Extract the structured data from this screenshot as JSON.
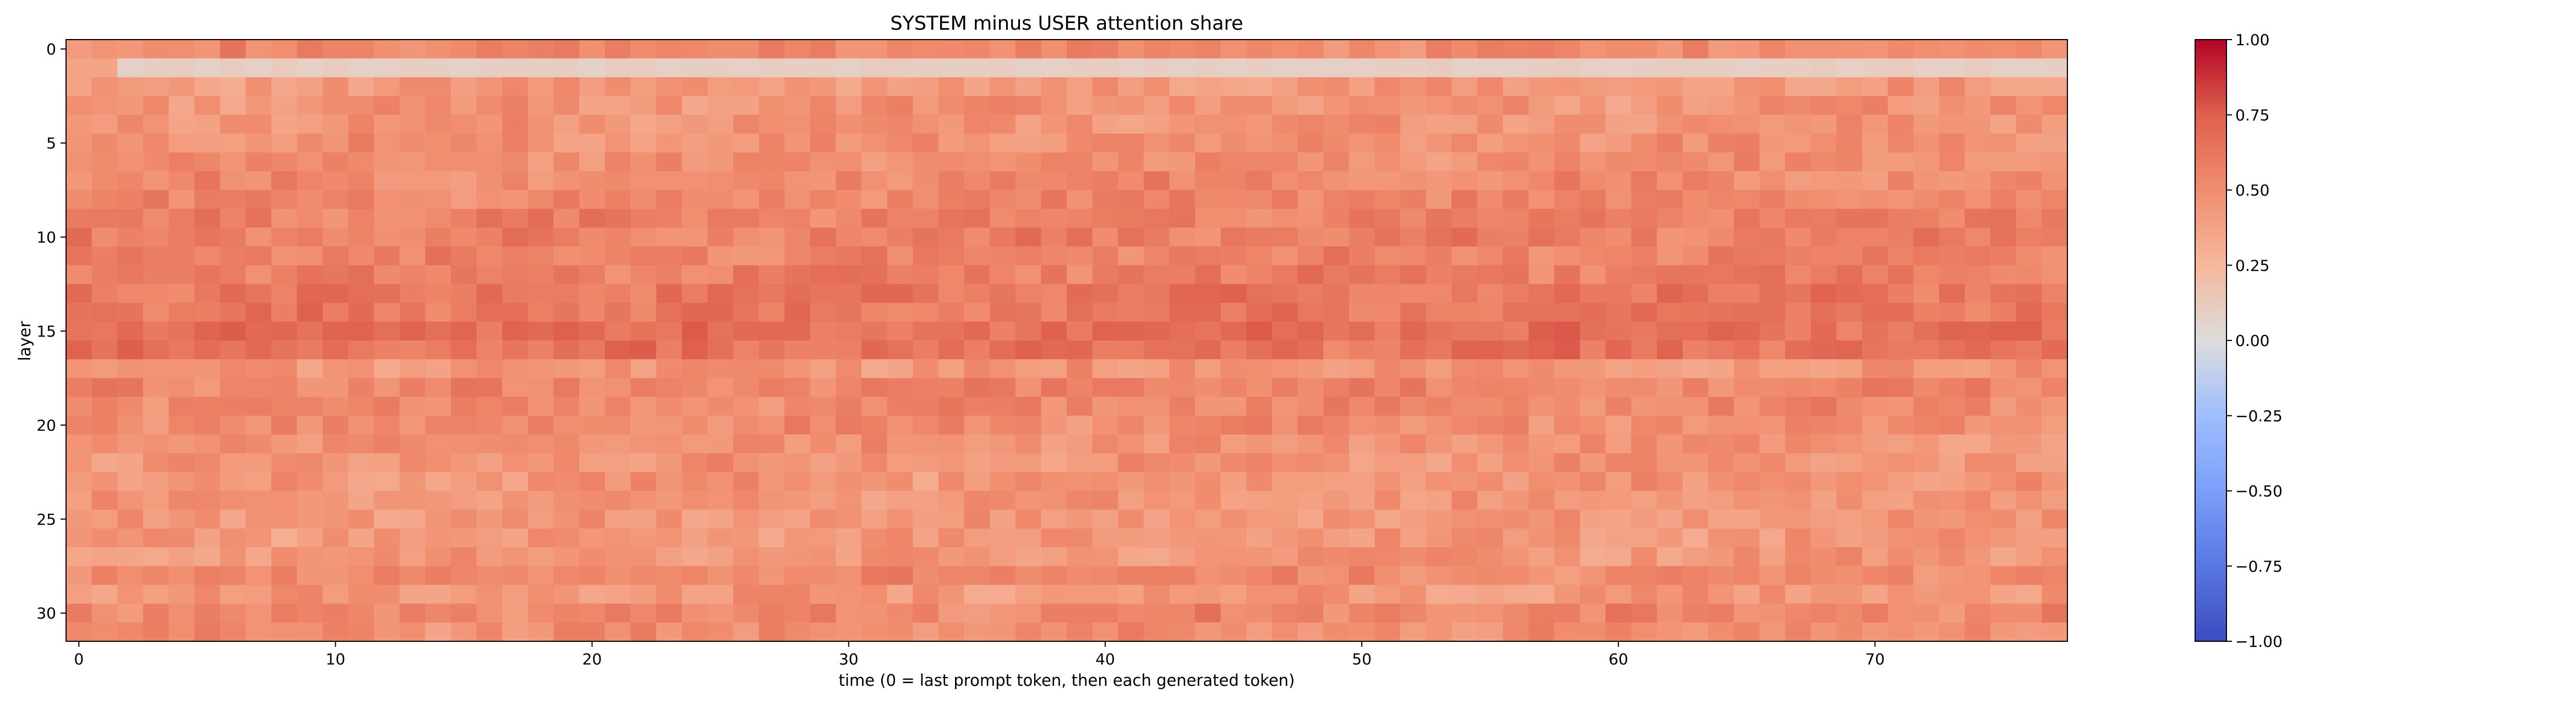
{
  "chart_data": {
    "type": "heatmap",
    "title": "SYSTEM minus USER attention share",
    "xlabel": "time (0 = last prompt token, then each generated token)",
    "ylabel": "layer",
    "n_cols": 78,
    "n_rows": 32,
    "x_ticks": [
      0,
      10,
      20,
      30,
      40,
      50,
      60,
      70
    ],
    "y_ticks": [
      0,
      5,
      10,
      15,
      20,
      25,
      30
    ],
    "colormap": "coolwarm",
    "vmin": -1.0,
    "vmax": 1.0,
    "colorbar_ticks": [
      1.0,
      0.75,
      0.5,
      0.25,
      0.0,
      -0.25,
      -0.5,
      -0.75,
      -1.0
    ],
    "colorbar_tick_labels": [
      "1.00",
      "0.75",
      "0.50",
      "0.25",
      "0.00",
      "−0.25",
      "−0.50",
      "−0.75",
      "−1.00"
    ],
    "row_mean_values": [
      0.52,
      0.1,
      0.43,
      0.46,
      0.47,
      0.48,
      0.49,
      0.52,
      0.53,
      0.57,
      0.57,
      0.55,
      0.58,
      0.62,
      0.61,
      0.66,
      0.64,
      0.45,
      0.53,
      0.52,
      0.51,
      0.47,
      0.46,
      0.45,
      0.45,
      0.44,
      0.43,
      0.44,
      0.51,
      0.44,
      0.53,
      0.49
    ],
    "notes_cell_variation": "per-cell values vary roughly ±0.10 around each layer's mean"
  }
}
